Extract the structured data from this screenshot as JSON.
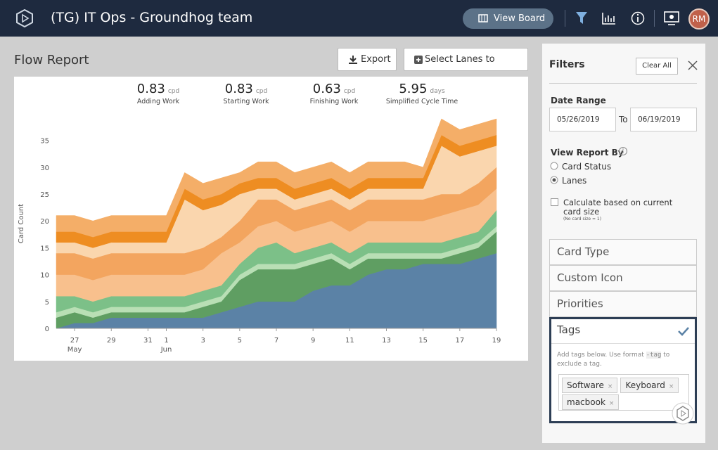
{
  "header": {
    "title": "(TG) IT Ops - Groundhog team",
    "view_board": "View Board",
    "avatar": "RM"
  },
  "report": {
    "title": "Flow Report",
    "export": "Export",
    "select_lanes": "Select Lanes to Include",
    "metrics": [
      {
        "value": 0.83,
        "unit": "cpd",
        "label": "Adding Work"
      },
      {
        "value": 0.83,
        "unit": "cpd",
        "label": "Starting Work"
      },
      {
        "value": 0.63,
        "unit": "cpd",
        "label": "Finishing Work"
      },
      {
        "value": 5.95,
        "unit": "days",
        "label": "Simplified Cycle Time"
      }
    ]
  },
  "chart_data": {
    "type": "stacked_area",
    "y_label": "Card Count",
    "categories": [
      null,
      "27",
      null,
      "29",
      null,
      "31",
      "1",
      null,
      "3",
      null,
      "5",
      null,
      "7",
      null,
      "9",
      null,
      "11",
      null,
      "13",
      null,
      "15",
      null,
      "17",
      null,
      "19"
    ],
    "category_months": [
      null,
      "May",
      null,
      null,
      null,
      null,
      "Jun",
      null,
      null,
      null,
      null,
      null,
      null,
      null,
      null,
      null,
      null,
      null,
      null,
      null,
      null,
      null,
      null,
      null,
      null
    ],
    "ylim": [
      0,
      39
    ],
    "yticks": [
      0,
      5,
      10,
      15,
      20,
      25,
      30,
      35
    ],
    "series": [
      {
        "color": "#5b82a6",
        "values": [
          0,
          1,
          1,
          2,
          2,
          2,
          2,
          2,
          2,
          3,
          4,
          5,
          5,
          5,
          7,
          8,
          8,
          10,
          11,
          11,
          12,
          12,
          12,
          13,
          14
        ]
      },
      {
        "color": "#5f9e62",
        "values": [
          2,
          2,
          1,
          1,
          1,
          1,
          1,
          1,
          2,
          2,
          5,
          6,
          6,
          6,
          5,
          5,
          3,
          3,
          2,
          2,
          1,
          1,
          2,
          2,
          4
        ]
      },
      {
        "color": "#b9dfb5",
        "values": [
          1,
          1,
          1,
          1,
          1,
          1,
          1,
          1,
          1,
          1,
          1,
          1,
          1,
          1,
          1,
          1,
          1,
          1,
          1,
          1,
          1,
          1,
          1,
          1,
          1
        ]
      },
      {
        "color": "#7cc088",
        "values": [
          3,
          2,
          2,
          2,
          2,
          2,
          2,
          2,
          2,
          2,
          2,
          3,
          4,
          2,
          2,
          2,
          2,
          2,
          2,
          2,
          2,
          2,
          2,
          2,
          3
        ]
      },
      {
        "color": "#f8c08d",
        "values": [
          4,
          4,
          4,
          4,
          4,
          4,
          4,
          4,
          4,
          6,
          4,
          4,
          4,
          4,
          4,
          4,
          4,
          4,
          4,
          4,
          4,
          5,
          5,
          5,
          4
        ]
      },
      {
        "color": "#f3a55f",
        "values": [
          4,
          4,
          4,
          4,
          4,
          4,
          4,
          4,
          4,
          3,
          4,
          5,
          4,
          4,
          4,
          4,
          4,
          4,
          4,
          4,
          4,
          4,
          3,
          4,
          4
        ]
      },
      {
        "color": "#fad6ae",
        "values": [
          2,
          2,
          2,
          2,
          2,
          2,
          2,
          10,
          7,
          6,
          5,
          2,
          2,
          2,
          2,
          2,
          2,
          2,
          2,
          2,
          2,
          9,
          7,
          6,
          4
        ]
      },
      {
        "color": "#ee8d22",
        "values": [
          2,
          2,
          2,
          2,
          2,
          2,
          2,
          2,
          2,
          2,
          2,
          2,
          2,
          2,
          2,
          2,
          2,
          2,
          2,
          2,
          2,
          2,
          2,
          2,
          2
        ]
      },
      {
        "color": "#f4ae68",
        "values": [
          3,
          3,
          3,
          3,
          3,
          3,
          3,
          3,
          3,
          3,
          2,
          3,
          3,
          3,
          3,
          3,
          3,
          3,
          3,
          3,
          2,
          3,
          3,
          3,
          3
        ]
      }
    ]
  },
  "filters": {
    "title": "Filters",
    "clear_all": "Clear All",
    "date_range": {
      "label": "Date Range",
      "start": "05/26/2019",
      "to": "To",
      "end": "06/19/2019"
    },
    "view_by": {
      "label": "View Report By",
      "options": [
        "Card Status",
        "Lanes"
      ]
    },
    "calculate": {
      "label": "Calculate based on current card size",
      "note": "(No card size = 1)"
    },
    "sections": [
      "Card Type",
      "Custom Icon",
      "Priorities",
      "Tags"
    ],
    "tags": {
      "hint_before": "Add tags below. Use format",
      "hint_code": "-tag",
      "hint_after": "to exclude a tag.",
      "items": [
        "Software",
        "Keyboard",
        "macbook"
      ]
    }
  }
}
